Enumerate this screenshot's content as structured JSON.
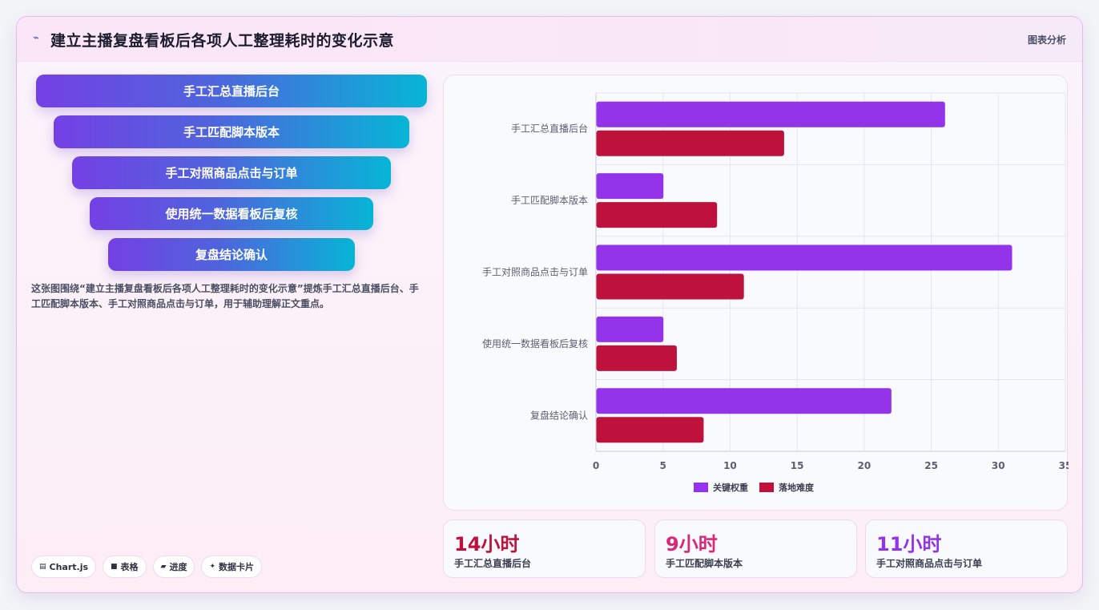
{
  "header": {
    "icon": "sparkline-icon",
    "title": "建立主播复盘看板后各项人工整理耗时的变化示意",
    "tag": "图表分析"
  },
  "funnel": {
    "items": [
      "手工汇总直播后台",
      "手工匹配脚本版本",
      "手工对照商品点击与订单",
      "使用统一数据看板后复核",
      "复盘结论确认"
    ]
  },
  "description": "这张图围绕“建立主播复盘看板后各项人工整理耗时的变化示意”提炼手工汇总直播后台、手工匹配脚本版本、手工对照商品点击与订单，用于辅助理解正文重点。",
  "chips": [
    {
      "icon": "chart-icon",
      "label": "Chart.js"
    },
    {
      "icon": "table-icon",
      "label": "表格"
    },
    {
      "icon": "progress-icon",
      "label": "进度"
    },
    {
      "icon": "card-icon",
      "label": "数据卡片"
    }
  ],
  "chart_data": {
    "type": "bar",
    "orientation": "horizontal",
    "categories": [
      "手工汇总直播后台",
      "手工匹配脚本版本",
      "手工对照商品点击与订单",
      "使用统一数据看板后复核",
      "复盘结论确认"
    ],
    "series": [
      {
        "name": "关键权重",
        "color": "#9333ea",
        "values": [
          26,
          5,
          31,
          5,
          22
        ]
      },
      {
        "name": "落地难度",
        "color": "#be123c",
        "values": [
          14,
          9,
          11,
          6,
          8
        ]
      }
    ],
    "xlim": [
      0,
      35
    ],
    "xticks": [
      0,
      5,
      10,
      15,
      20,
      25,
      30,
      35
    ],
    "grid": true,
    "legend": "bottom"
  },
  "stats": [
    {
      "value": "14小时",
      "label": "手工汇总直播后台",
      "color": "#be123c"
    },
    {
      "value": "9小时",
      "label": "手工匹配脚本版本",
      "color": "#db2777"
    },
    {
      "value": "11小时",
      "label": "手工对照商品点击与订单",
      "color": "#9333ea"
    }
  ]
}
